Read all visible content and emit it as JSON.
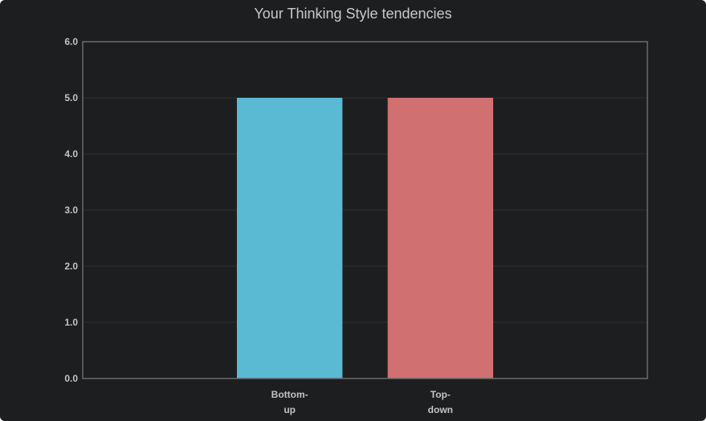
{
  "chart_data": {
    "type": "bar",
    "title": "Your Thinking Style tendencies",
    "xlabel": "",
    "ylabel": "",
    "categories": [
      [
        "Bottom-",
        "up"
      ],
      [
        "Top-",
        "down"
      ]
    ],
    "values": [
      5.0,
      5.0
    ],
    "colors": [
      "#5bbad3",
      "#d07071"
    ],
    "ylim": [
      0,
      6
    ],
    "yticks": [
      "0.0",
      "1.0",
      "2.0",
      "3.0",
      "4.0",
      "5.0",
      "6.0"
    ],
    "grid": true,
    "legend": "none",
    "background": "#1d1e20",
    "grid_color": "#2e2f31",
    "axis_color": "#6a6b6d",
    "text_color": "#c3c3c3"
  }
}
